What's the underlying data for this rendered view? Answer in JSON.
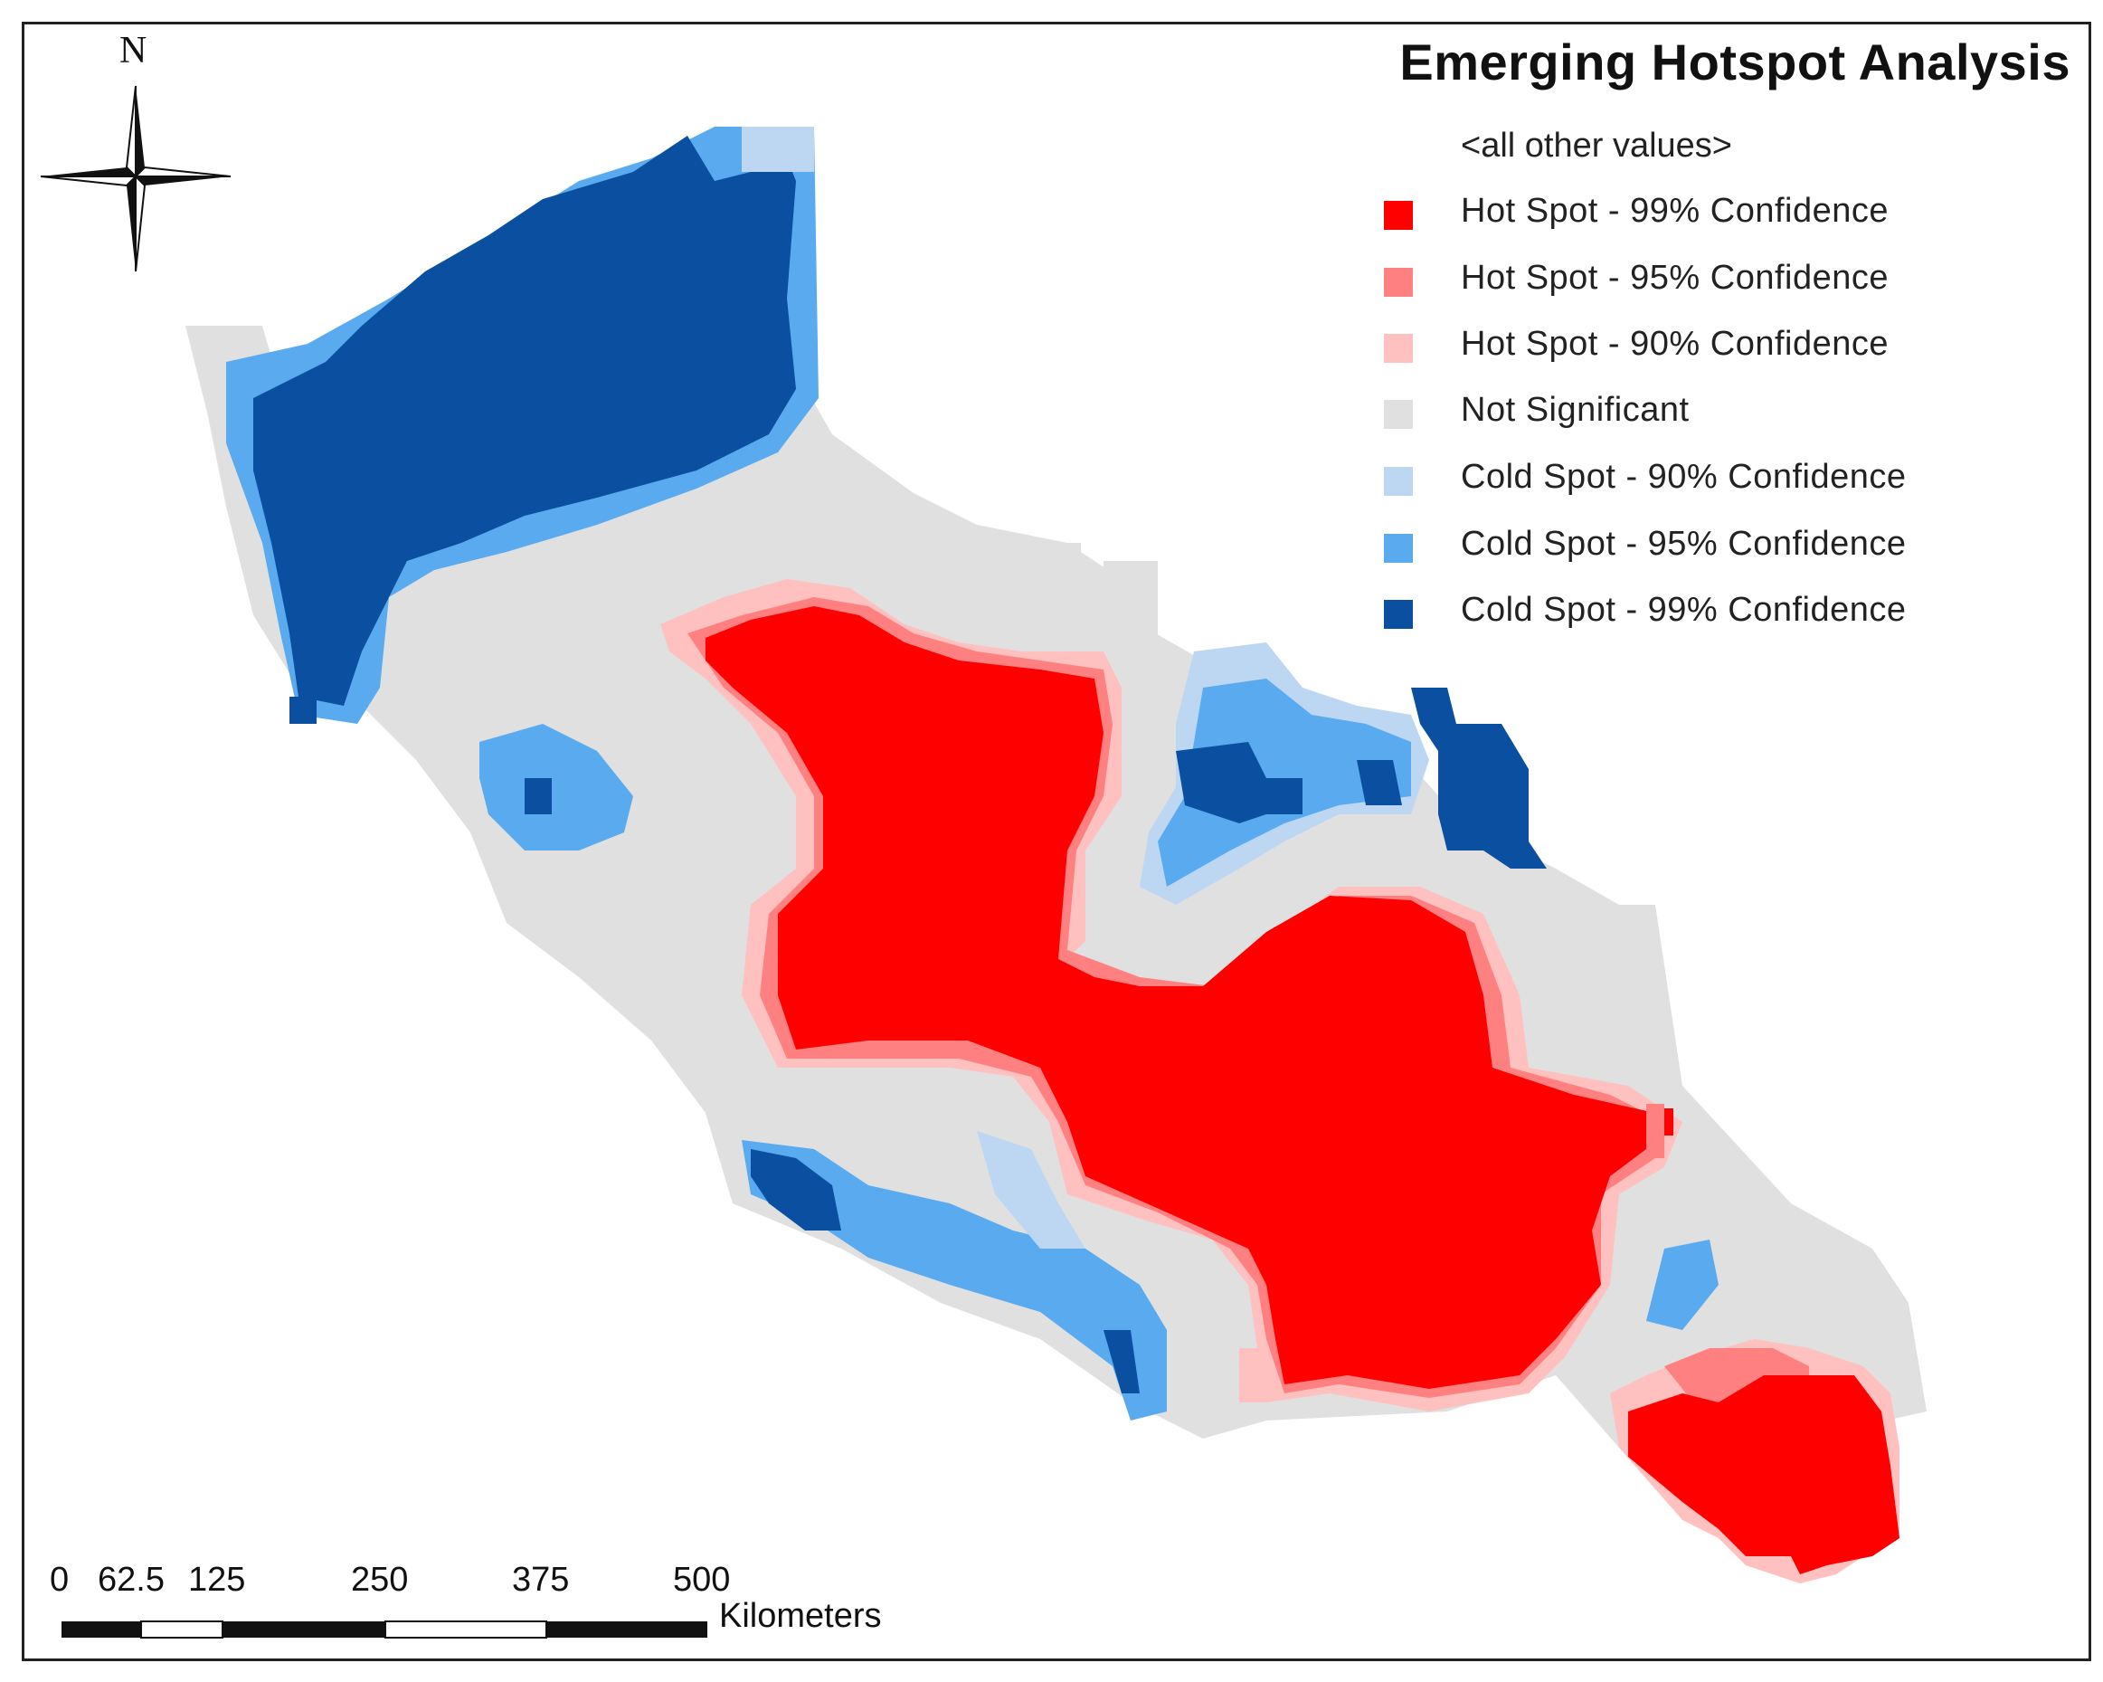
{
  "map": {
    "title": "Emerging Hotspot Analysis",
    "north_label": "N",
    "legend": {
      "header": "<all other values>",
      "items": [
        {
          "label": "Hot Spot - 99% Confidence",
          "color": "#ff0000"
        },
        {
          "label": "Hot Spot - 95% Confidence",
          "color": "#ff8080"
        },
        {
          "label": "Hot Spot - 90% Confidence",
          "color": "#ffc0c0"
        },
        {
          "label": "Not Significant",
          "color": "#e0e0e0"
        },
        {
          "label": "Cold Spot - 90% Confidence",
          "color": "#bdd7f3"
        },
        {
          "label": "Cold Spot - 95% Confidence",
          "color": "#5aaaf0"
        },
        {
          "label": "Cold Spot - 99% Confidence",
          "color": "#0b4fa0"
        }
      ]
    },
    "scale_bar": {
      "ticks": [
        "0",
        "62.5",
        "125",
        "250",
        "375",
        "500"
      ],
      "unit": "Kilometers"
    }
  }
}
